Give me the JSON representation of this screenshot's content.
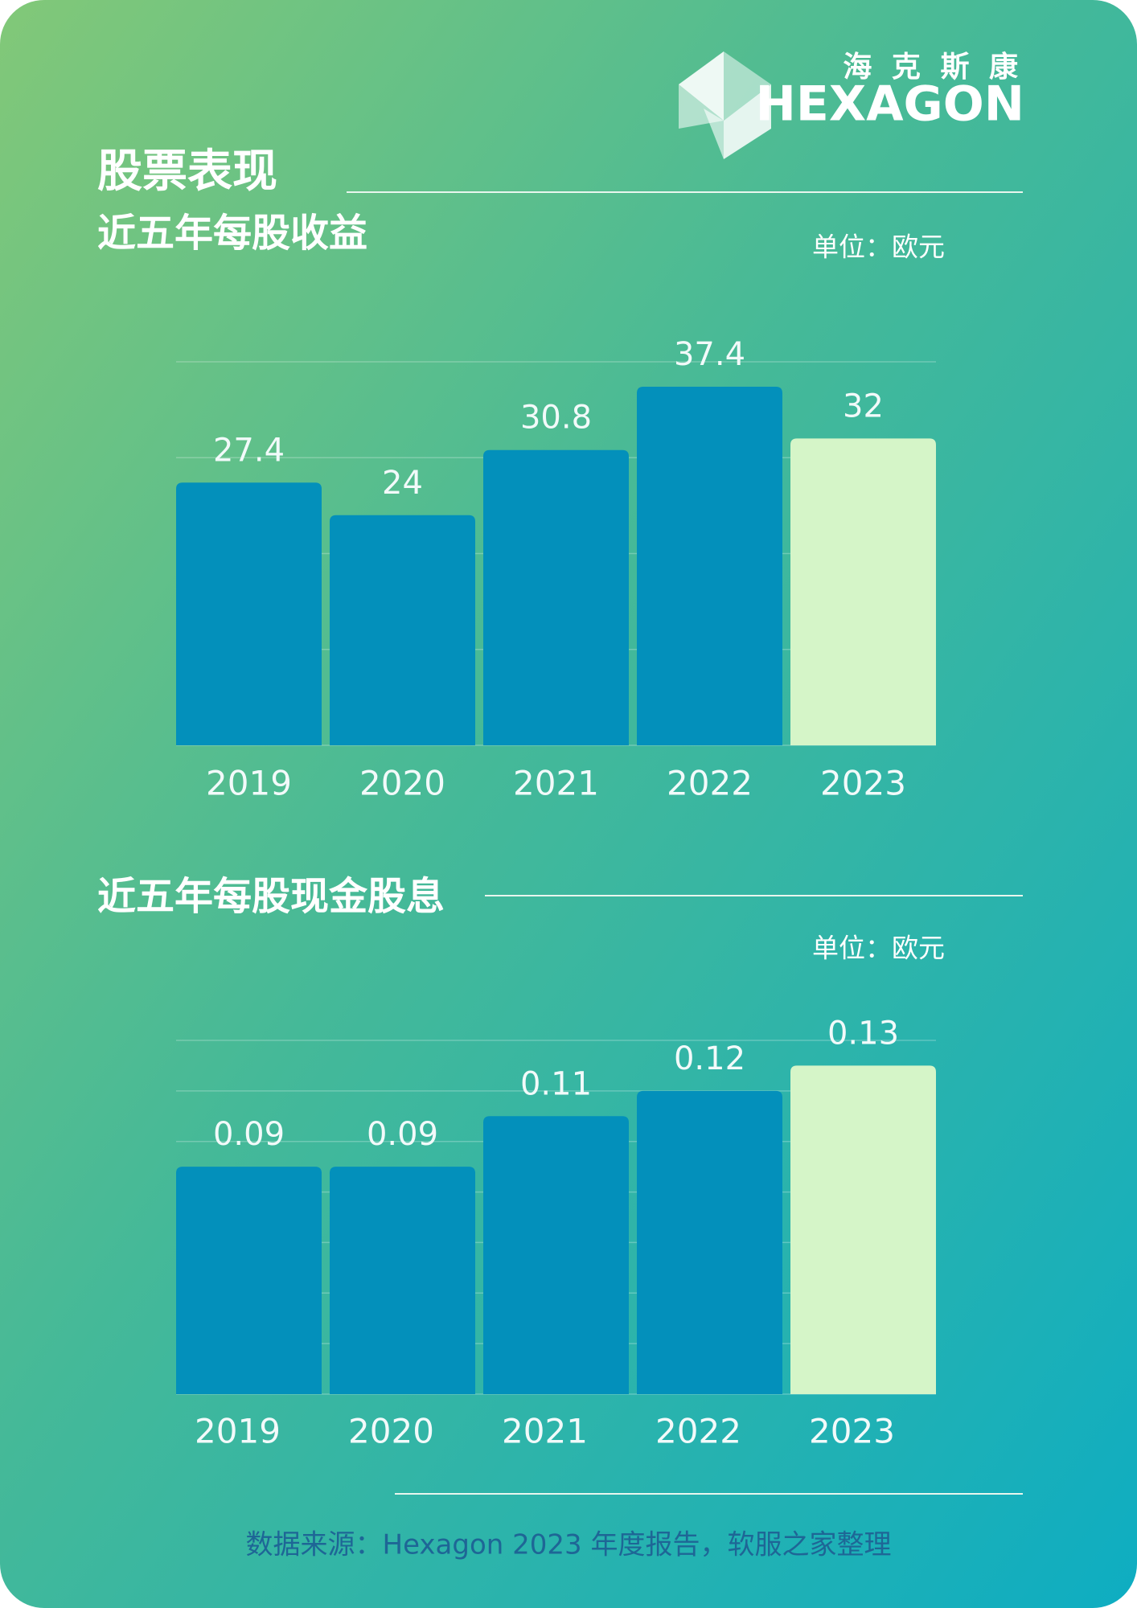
{
  "header": {
    "brand_cn": "海 克 斯 康",
    "brand": "HEXAGON",
    "section_title": "股票表现"
  },
  "chart_data": [
    {
      "type": "bar",
      "title": "近五年每股收益",
      "unit": "单位：欧元",
      "categories": [
        "2019",
        "2020",
        "2021",
        "2022",
        "2023"
      ],
      "values": [
        27.4,
        24,
        30.8,
        37.4,
        32
      ],
      "colors": [
        "#0390bb",
        "#0390bb",
        "#0390bb",
        "#0390bb",
        "#d5f5c8"
      ],
      "ylim": [
        0,
        40
      ],
      "yticks": [
        0,
        10,
        20,
        30,
        40
      ],
      "grid": true
    },
    {
      "type": "bar",
      "title": "近五年每股现金股息",
      "unit": "单位：欧元",
      "categories": [
        "2019",
        "2020",
        "2021",
        "2022",
        "2023"
      ],
      "values": [
        0.09,
        0.09,
        0.11,
        0.12,
        0.13
      ],
      "colors": [
        "#0390bb",
        "#0390bb",
        "#0390bb",
        "#0390bb",
        "#d5f5c8"
      ],
      "ylim": [
        0,
        0.14
      ],
      "yticks": [
        0,
        0.02,
        0.04,
        0.06,
        0.08,
        0.1,
        0.12,
        0.14
      ],
      "grid": true
    }
  ],
  "footer": {
    "source": "数据来源：Hexagon 2023 年度报告，软服之家整理"
  }
}
